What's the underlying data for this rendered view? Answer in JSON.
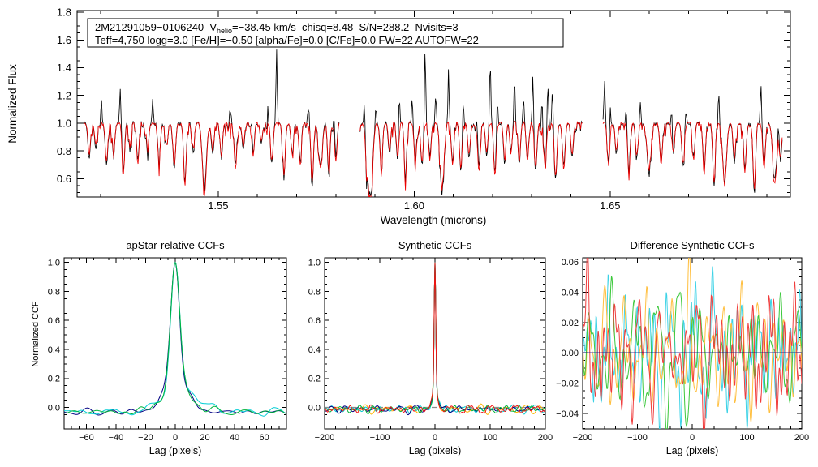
{
  "annotation": {
    "line1_pre": "2M21291059−0106240  V",
    "line1_sub": "helio",
    "line1_rest": "=−38.45 km/s  chisq=8.48  S/N=288.2  Nvisits=3",
    "line2": "Teff=4,750 logg=3.0 [Fe/H]=−0.50 [alpha/Fe]=0.0 [C/Fe]=0.0 FW=22 AUTOFW=22"
  },
  "chart_data": [
    {
      "id": "spectrum",
      "type": "line",
      "title": "",
      "xlabel": "Wavelength (microns)",
      "ylabel": "Normalized Flux",
      "xlim": [
        1.514,
        1.696
      ],
      "ylim": [
        0.468,
        1.812
      ],
      "xticks": {
        "major": [
          1.55,
          1.6,
          1.65
        ],
        "labels": [
          "1.55",
          "1.60",
          "1.65"
        ],
        "minor": 0.01
      },
      "yticks": {
        "major": [
          0.6,
          0.8,
          1.0,
          1.2,
          1.4,
          1.6,
          1.8
        ],
        "labels": [
          "0.6",
          "0.8",
          "1.0",
          "1.2",
          "1.4",
          "1.6",
          "1.8"
        ],
        "minor": 0.05
      },
      "segments": [
        [
          1.5157,
          1.581
        ],
        [
          1.5862,
          1.643
        ],
        [
          1.6482,
          1.694
        ]
      ],
      "continuum": 1.0,
      "series": [
        {
          "name": "observed spectrum",
          "color": "#000000"
        },
        {
          "name": "best-fit model spectrum",
          "color": "#ee0000"
        }
      ],
      "features": {
        "absorption_lines": [
          [
            1.5171,
            0.25,
            0.22
          ],
          [
            1.5188,
            0.18,
            0.15
          ],
          [
            1.5215,
            0.3,
            0.28
          ],
          [
            1.5233,
            0.22,
            0.2
          ],
          [
            1.5258,
            0.35,
            0.38
          ],
          [
            1.5275,
            0.18,
            0.16
          ],
          [
            1.5295,
            0.28,
            0.3
          ],
          [
            1.532,
            0.2,
            0.18
          ],
          [
            1.5349,
            0.25,
            0.27
          ],
          [
            1.5368,
            0.15,
            0.14
          ],
          [
            1.5388,
            0.32,
            0.3
          ],
          [
            1.5415,
            0.42,
            0.45
          ],
          [
            1.5436,
            0.2,
            0.18
          ],
          [
            1.5465,
            0.48,
            0.52,
            0.0007
          ],
          [
            1.5486,
            0.22,
            0.2
          ],
          [
            1.5508,
            0.25,
            0.23
          ],
          [
            1.5544,
            0.3,
            0.33
          ],
          [
            1.5564,
            0.18,
            0.16
          ],
          [
            1.5589,
            0.22,
            0.24
          ],
          [
            1.561,
            0.15,
            0.13
          ],
          [
            1.5637,
            0.28,
            0.26
          ],
          [
            1.5668,
            0.35,
            0.32
          ],
          [
            1.5689,
            0.2,
            0.22
          ],
          [
            1.5709,
            0.25,
            0.28
          ],
          [
            1.574,
            0.45,
            0.42
          ],
          [
            1.5761,
            0.3,
            0.33,
            0.0007
          ],
          [
            1.5782,
            0.38,
            0.35
          ],
          [
            1.58,
            0.25,
            0.28
          ],
          [
            1.5879,
            0.3,
            0.28
          ],
          [
            1.5889,
            0.52,
            0.55,
            0.0007
          ],
          [
            1.5916,
            0.3,
            0.33
          ],
          [
            1.5937,
            0.22,
            0.2
          ],
          [
            1.5958,
            0.28,
            0.25
          ],
          [
            1.5978,
            0.35,
            0.38
          ],
          [
            1.6003,
            0.25,
            0.28
          ],
          [
            1.602,
            0.3,
            0.27
          ],
          [
            1.604,
            0.22,
            0.25
          ],
          [
            1.6071,
            0.48,
            0.45,
            0.0007
          ],
          [
            1.6098,
            0.28,
            0.3
          ],
          [
            1.6119,
            0.35,
            0.33
          ],
          [
            1.614,
            0.25,
            0.22
          ],
          [
            1.6165,
            0.3,
            0.33
          ],
          [
            1.6185,
            0.22,
            0.2
          ],
          [
            1.6206,
            0.35,
            0.38
          ],
          [
            1.6231,
            0.28,
            0.25
          ],
          [
            1.6247,
            0.2,
            0.22
          ],
          [
            1.6268,
            0.3,
            0.28
          ],
          [
            1.6289,
            0.25,
            0.28
          ],
          [
            1.631,
            0.35,
            0.32
          ],
          [
            1.6334,
            0.28,
            0.3
          ],
          [
            1.6361,
            0.4,
            0.37
          ],
          [
            1.6382,
            0.3,
            0.33
          ],
          [
            1.6403,
            0.25,
            0.22
          ],
          [
            1.6496,
            0.28,
            0.3
          ],
          [
            1.6516,
            0.22,
            0.2
          ],
          [
            1.6548,
            0.3,
            0.33
          ],
          [
            1.6568,
            0.25,
            0.23
          ],
          [
            1.6599,
            0.35,
            0.32,
            0.0007
          ],
          [
            1.663,
            0.28,
            0.3
          ],
          [
            1.6661,
            0.22,
            0.2
          ],
          [
            1.6686,
            0.3,
            0.28
          ],
          [
            1.6713,
            0.25,
            0.27
          ],
          [
            1.674,
            0.35,
            0.38
          ],
          [
            1.6765,
            0.45,
            0.42
          ],
          [
            1.6792,
            0.4,
            0.43,
            0.0007
          ],
          [
            1.6817,
            0.28,
            0.25
          ],
          [
            1.6844,
            0.32,
            0.35
          ],
          [
            1.6868,
            0.5,
            0.46
          ],
          [
            1.6893,
            0.3,
            0.33
          ],
          [
            1.692,
            0.4,
            0.44,
            0.0007
          ],
          [
            1.6935,
            0.25,
            0.22
          ]
        ],
        "emission_spikes": [
          [
            1.5202,
            1.17
          ],
          [
            1.525,
            1.26
          ],
          [
            1.5333,
            1.18
          ],
          [
            1.5531,
            1.18
          ],
          [
            1.5585,
            1.1
          ],
          [
            1.5626,
            1.12
          ],
          [
            1.5649,
            1.53
          ],
          [
            1.573,
            1.19
          ],
          [
            1.5796,
            1.12
          ],
          [
            1.5873,
            1.21
          ],
          [
            1.5902,
            1.12
          ],
          [
            1.5962,
            1.31
          ],
          [
            1.5995,
            1.18
          ],
          [
            1.6028,
            1.55
          ],
          [
            1.6055,
            1.21
          ],
          [
            1.6088,
            1.43
          ],
          [
            1.6125,
            1.22
          ],
          [
            1.6161,
            1.12
          ],
          [
            1.6194,
            1.46
          ],
          [
            1.6212,
            1.22
          ],
          [
            1.6256,
            1.31
          ],
          [
            1.6279,
            1.18
          ],
          [
            1.6303,
            1.36
          ],
          [
            1.6326,
            1.22
          ],
          [
            1.6341,
            1.31
          ],
          [
            1.6353,
            1.26
          ],
          [
            1.6486,
            1.31
          ],
          [
            1.65,
            1.22
          ],
          [
            1.6541,
            1.12
          ],
          [
            1.6577,
            1.16
          ],
          [
            1.6657,
            1.21
          ],
          [
            1.6693,
            1.12
          ],
          [
            1.6777,
            1.21
          ],
          [
            1.6885,
            1.31
          ],
          [
            1.693,
            1.12
          ]
        ]
      }
    },
    {
      "id": "apstar",
      "type": "line",
      "title": "apStar-relative CCFs",
      "xlabel": "Lag (pixels)",
      "ylabel": "Normalized CCF",
      "xlim": [
        -75,
        75
      ],
      "ylim": [
        -0.148,
        1.032
      ],
      "xticks": {
        "major": [
          -60,
          -40,
          -20,
          0,
          20,
          40,
          60
        ],
        "labels": [
          "−60",
          "−40",
          "−20",
          "0",
          "20",
          "40",
          "60"
        ],
        "minor": 5
      },
      "yticks": {
        "major": [
          0,
          0.2,
          0.4,
          0.6,
          0.8,
          1.0
        ],
        "labels": [
          "0.0",
          "0.2",
          "0.4",
          "0.6",
          "0.8",
          "1.0"
        ],
        "minor": 0.05
      },
      "peak": {
        "center": 0,
        "height": 1.0,
        "core_w": 4.2,
        "wing_w": 13,
        "wing_frac": 0.16
      },
      "noise": {
        "amp": 0.03,
        "base": -0.03,
        "pmin": 6,
        "pmax": 28
      },
      "series": [
        {
          "name": "navy",
          "color": "#000082",
          "seed": 11
        },
        {
          "name": "cyan",
          "color": "#00cdd4",
          "seed": 23,
          "shoulder": [
            0.055,
            16,
            12
          ]
        },
        {
          "name": "green",
          "color": "#00b43c",
          "seed": 37,
          "shoulder": [
            0.02,
            13,
            9
          ]
        }
      ]
    },
    {
      "id": "synthetic",
      "type": "line",
      "title": "Synthetic CCFs",
      "xlabel": "Lag (pixels)",
      "ylabel": "",
      "xlim": [
        -200,
        200
      ],
      "ylim": [
        -0.148,
        1.032
      ],
      "xticks": {
        "major": [
          -200,
          -100,
          0,
          100,
          200
        ],
        "labels": [
          "−200",
          "−100",
          "0",
          "100",
          "200"
        ],
        "minor": 20
      },
      "yticks": {
        "major": [
          0,
          0.2,
          0.4,
          0.6,
          0.8,
          1.0
        ],
        "labels": [
          "0.0",
          "0.2",
          "0.4",
          "0.6",
          "0.8",
          "1.0"
        ],
        "minor": 0.05
      },
      "peak": {
        "center": 0,
        "height": 1.0,
        "core_w": 2.1,
        "wing_w": 7,
        "wing_frac": 0.12
      },
      "noise": {
        "amp": 0.028,
        "base": -0.012,
        "pmin": 9,
        "pmax": 48
      },
      "zero_line": {
        "value": 0,
        "color": "#8c8c8c",
        "dash": "6,5",
        "under": true
      },
      "series": [
        {
          "name": "gold",
          "color": "#ffb400",
          "seed": 41
        },
        {
          "name": "cyan",
          "color": "#00cdd4",
          "seed": 53
        },
        {
          "name": "navy",
          "color": "#000082",
          "seed": 67
        },
        {
          "name": "green",
          "color": "#00b43c",
          "seed": 79
        },
        {
          "name": "red",
          "color": "#f01414",
          "seed": 97
        }
      ]
    },
    {
      "id": "difference",
      "type": "line",
      "title": "Difference Synthetic CCFs",
      "xlabel": "Lag (pixels)",
      "ylabel": "",
      "xlim": [
        -200,
        200
      ],
      "ylim": [
        -0.0502,
        0.0627
      ],
      "xticks": {
        "major": [
          -200,
          -100,
          0,
          100,
          200
        ],
        "labels": [
          "−200",
          "−100",
          "0",
          "100",
          "200"
        ],
        "minor": 20
      },
      "yticks": {
        "major": [
          0.06,
          0.04,
          0.02,
          0,
          -0.02,
          -0.04
        ],
        "labels": [
          "0.06",
          "0.04",
          "0.02",
          "0.00",
          "−0.02",
          "−0.04"
        ],
        "minor": 0.005
      },
      "noise": {
        "amp": 0.045,
        "base": 0,
        "pmin": 7,
        "pmax": 50
      },
      "zero_line": {
        "value": 0,
        "color": "#000082",
        "dash": null,
        "under": false
      },
      "series": [
        {
          "name": "cyan",
          "color": "#3cd2e6",
          "seed": 5
        },
        {
          "name": "gold",
          "color": "#ffbe3c",
          "seed": 17
        },
        {
          "name": "green",
          "color": "#3cc83c",
          "seed": 29
        },
        {
          "name": "red",
          "color": "#f03c3c",
          "seed": 43
        }
      ]
    }
  ]
}
